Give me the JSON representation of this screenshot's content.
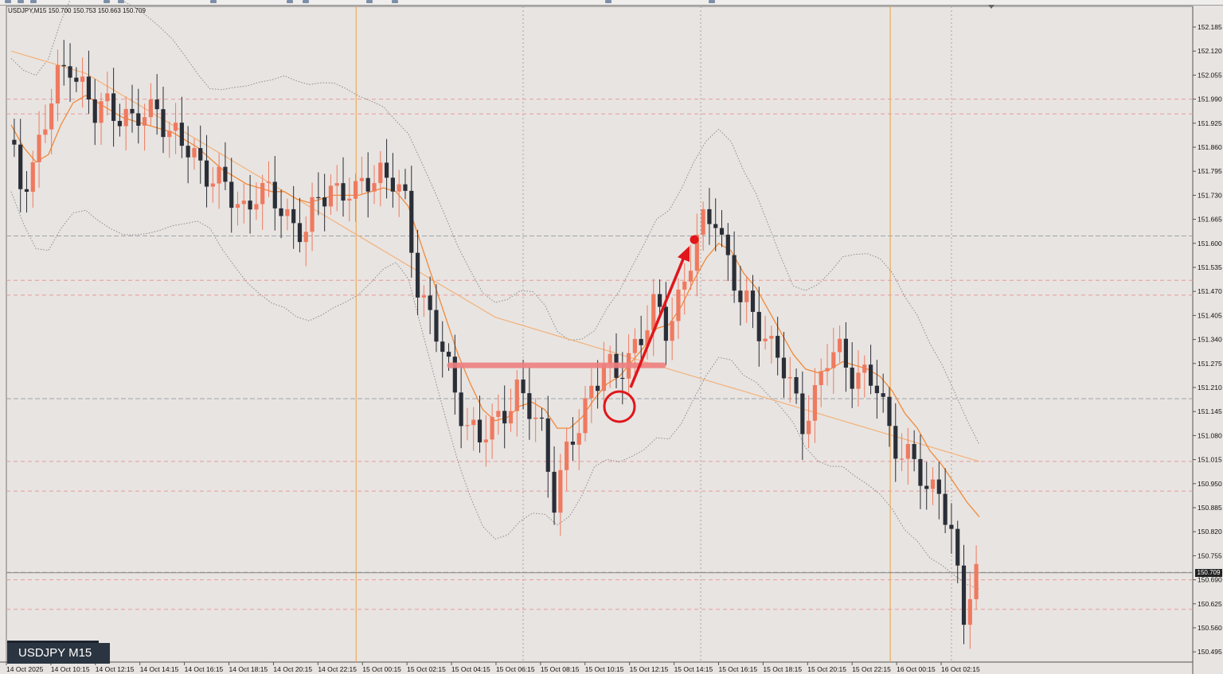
{
  "window": {
    "symbol_timeframe": "USDJPY,M15",
    "ohlc": "150.700 150.753 150.663 150.709",
    "badge_label": "USDJPY M15",
    "current_price": "150.709"
  },
  "colors": {
    "background": "#e8e4e1",
    "bull_candle": "#ef7a5f",
    "bear_candle": "#2a2e37",
    "moving_average_fast": "#f08a3a",
    "moving_average_slow": "#f3b27a",
    "bollinger_band": "#8c8c8c",
    "annotation_red": "#e0161b",
    "support_line": "#ef8080"
  },
  "chart_data": {
    "type": "candlestick",
    "symbol": "USDJPY",
    "timeframe": "M15",
    "ylim": [
      150.46,
      152.18
    ],
    "price_axis_ticks": [
      "152.185",
      "152.120",
      "152.055",
      "151.990",
      "151.925",
      "151.860",
      "151.795",
      "151.730",
      "151.665",
      "151.600",
      "151.535",
      "151.470",
      "151.405",
      "151.340",
      "151.275",
      "151.210",
      "151.145",
      "151.080",
      "151.015",
      "150.950",
      "150.885",
      "150.820",
      "150.755",
      "150.690",
      "150.625",
      "150.560",
      "150.495"
    ],
    "time_axis_labels": [
      "14 Oct 2025",
      "14 Oct 10:15",
      "14 Oct 12:15",
      "14 Oct 14:15",
      "14 Oct 16:15",
      "14 Oct 18:15",
      "14 Oct 20:15",
      "14 Oct 22:15",
      "15 Oct 00:15",
      "15 Oct 02:15",
      "15 Oct 04:15",
      "15 Oct 06:15",
      "15 Oct 08:15",
      "15 Oct 10:15",
      "15 Oct 12:15",
      "15 Oct 14:15",
      "15 Oct 16:15",
      "15 Oct 18:15",
      "15 Oct 20:15",
      "15 Oct 22:15",
      "16 Oct 00:15",
      "16 Oct 02:15"
    ],
    "session_markers": [
      "15 Oct 00:15",
      "16 Oct 00:15"
    ],
    "close_path": [
      151.88,
      151.76,
      151.82,
      151.92,
      152.04,
      152.1,
      152.02,
      151.94,
      151.98,
      151.96,
      151.92,
      151.94,
      151.98,
      151.9,
      151.86,
      151.84,
      151.8,
      151.76,
      151.72,
      151.7,
      151.74,
      151.72,
      151.7,
      151.66,
      151.62,
      151.72,
      151.76,
      151.74,
      151.72,
      151.78,
      151.8,
      151.76,
      151.7,
      151.5,
      151.4,
      151.3,
      151.2,
      151.12,
      151.06,
      151.1,
      151.16,
      151.2,
      151.14,
      151.1,
      150.92,
      151.02,
      151.1,
      151.22,
      151.28,
      151.22,
      151.3,
      151.36,
      151.42,
      151.36,
      151.46,
      151.56,
      151.64,
      151.68,
      151.56,
      151.44,
      151.4,
      151.36,
      151.3,
      151.2,
      151.12,
      151.2,
      151.28,
      151.3,
      151.26,
      151.24,
      151.2,
      151.1,
      151.04,
      151.0,
      150.92,
      150.96,
      150.8,
      150.58,
      150.71
    ],
    "indicators": {
      "moving_average_fast": [
        151.92,
        151.86,
        151.82,
        151.84,
        151.92,
        151.98,
        152.0,
        151.98,
        151.96,
        151.94,
        151.93,
        151.92,
        151.91,
        151.9,
        151.88,
        151.86,
        151.83,
        151.8,
        151.78,
        151.76,
        151.75,
        151.74,
        151.74,
        151.72,
        151.71,
        151.72,
        151.73,
        151.73,
        151.73,
        151.74,
        151.75,
        151.74,
        151.7,
        151.6,
        151.5,
        151.4,
        151.3,
        151.22,
        151.15,
        151.12,
        151.13,
        151.16,
        151.17,
        151.15,
        151.1,
        151.1,
        151.13,
        151.18,
        151.22,
        151.24,
        151.28,
        151.32,
        151.37,
        151.38,
        151.43,
        151.5,
        151.56,
        151.6,
        151.58,
        151.52,
        151.48,
        151.42,
        151.36,
        151.3,
        151.26,
        151.25,
        151.26,
        151.28,
        151.27,
        151.26,
        151.24,
        151.2,
        151.14,
        151.1,
        151.04,
        151.0,
        150.95,
        150.9,
        150.86
      ],
      "moving_average_slow": [
        152.12,
        152.11,
        152.1,
        152.09,
        152.08,
        152.07,
        152.06,
        152.04,
        152.02,
        152.0,
        151.98,
        151.96,
        151.94,
        151.92,
        151.9,
        151.88,
        151.86,
        151.84,
        151.82,
        151.8,
        151.78,
        151.76,
        151.74,
        151.72,
        151.7,
        151.68,
        151.66,
        151.64,
        151.62,
        151.6,
        151.58,
        151.56,
        151.54,
        151.52,
        151.5,
        151.48,
        151.46,
        151.44,
        151.42,
        151.4,
        151.39,
        151.38,
        151.37,
        151.36,
        151.35,
        151.34,
        151.33,
        151.32,
        151.31,
        151.3,
        151.29,
        151.28,
        151.27,
        151.26,
        151.25,
        151.24,
        151.23,
        151.22,
        151.21,
        151.2,
        151.19,
        151.18,
        151.17,
        151.16,
        151.15,
        151.14,
        151.13,
        151.12,
        151.11,
        151.1,
        151.09,
        151.08,
        151.07,
        151.06,
        151.05,
        151.04,
        151.03,
        151.02,
        151.01
      ]
    },
    "horizontal_levels": [
      151.99,
      151.95,
      151.62,
      151.5,
      151.46,
      151.18,
      151.01,
      150.93,
      150.71,
      150.69,
      150.61
    ],
    "annotations": {
      "support_zone_price": 151.27,
      "arrow_target_price": 151.61,
      "circle_price": 151.18
    }
  }
}
